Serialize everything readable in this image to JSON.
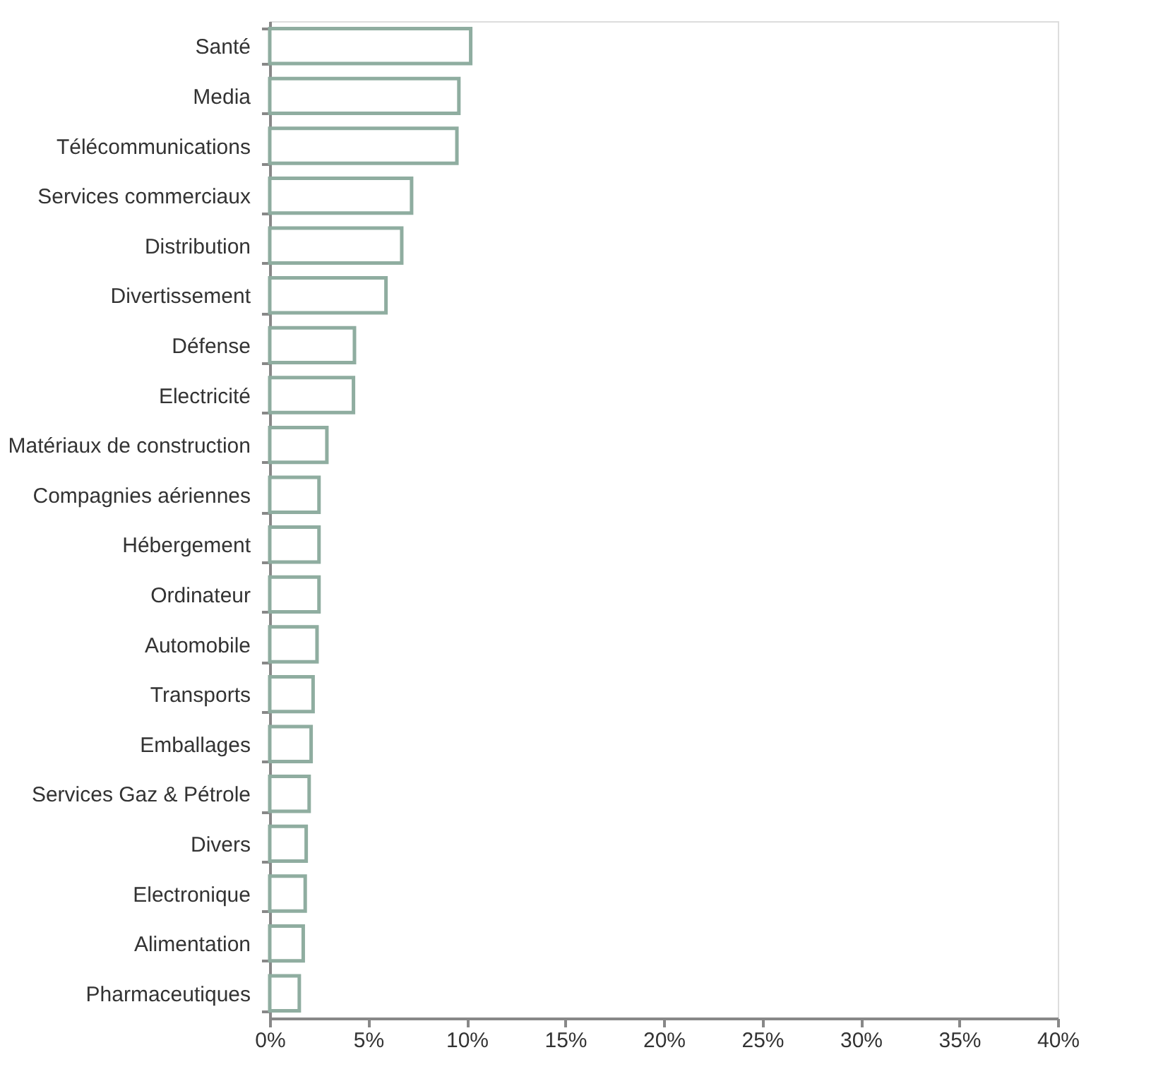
{
  "chart_data": {
    "type": "bar",
    "orientation": "horizontal",
    "categories": [
      "Santé",
      "Media",
      "Télécommunications",
      "Services commerciaux",
      "Distribution",
      "Divertissement",
      "Défense",
      "Electricité",
      "Matériaux de construction",
      "Compagnies aériennes",
      "Hébergement",
      "Ordinateur",
      "Automobile",
      "Transports",
      "Emballages",
      "Services Gaz & Pétrole",
      "Divers",
      "Electronique",
      "Alimentation",
      "Pharmaceutiques"
    ],
    "values": [
      10.2,
      9.6,
      9.5,
      7.2,
      6.7,
      5.9,
      4.3,
      4.25,
      2.9,
      2.5,
      2.5,
      2.5,
      2.4,
      2.2,
      2.1,
      2.0,
      1.85,
      1.8,
      1.7,
      1.5
    ],
    "color": "#8fada0",
    "xlim": [
      0,
      40
    ],
    "xticks": [
      {
        "value": 0,
        "label": "0%"
      },
      {
        "value": 5,
        "label": "5%"
      },
      {
        "value": 10,
        "label": "10%"
      },
      {
        "value": 15,
        "label": "15%"
      },
      {
        "value": 20,
        "label": "20%"
      },
      {
        "value": 25,
        "label": "25%"
      },
      {
        "value": 30,
        "label": "30%"
      },
      {
        "value": 35,
        "label": "35%"
      },
      {
        "value": 40,
        "label": "40%"
      }
    ],
    "grid": false
  }
}
